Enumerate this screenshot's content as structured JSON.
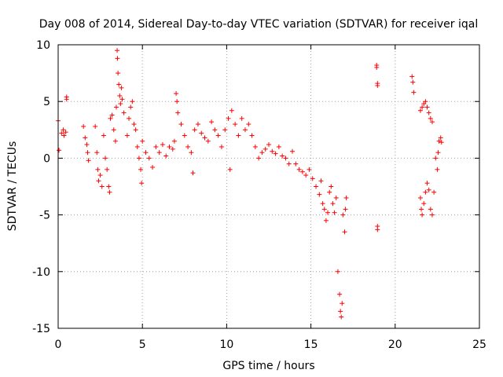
{
  "chart_data": {
    "type": "scatter",
    "title": "Day 008 of 2014, Sidereal Day-to-day VTEC variation (SDTVAR) for receiver iqal",
    "xlabel": "GPS time / hours",
    "ylabel": "SDTVAR / TECUs",
    "xlim": [
      0,
      25
    ],
    "ylim": [
      -15,
      10
    ],
    "xticks": [
      0,
      5,
      10,
      15,
      20,
      25
    ],
    "yticks": [
      -15,
      -10,
      -5,
      0,
      5,
      10
    ],
    "grid": true,
    "marker": "+",
    "marker_color": "#ff0000",
    "series": [
      {
        "name": "SDTVAR",
        "points": [
          [
            0.0,
            3.3
          ],
          [
            0.05,
            0.7
          ],
          [
            0.2,
            2.2
          ],
          [
            0.3,
            2.5
          ],
          [
            0.35,
            2.0
          ],
          [
            0.45,
            2.3
          ],
          [
            0.5,
            5.4
          ],
          [
            0.5,
            5.2
          ],
          [
            1.5,
            2.8
          ],
          [
            1.6,
            1.8
          ],
          [
            1.7,
            1.2
          ],
          [
            1.75,
            0.5
          ],
          [
            1.8,
            -0.2
          ],
          [
            2.2,
            2.8
          ],
          [
            2.3,
            0.5
          ],
          [
            2.35,
            -1.0
          ],
          [
            2.4,
            -2.0
          ],
          [
            2.5,
            -1.5
          ],
          [
            2.6,
            -2.5
          ],
          [
            2.7,
            2.0
          ],
          [
            2.8,
            0.0
          ],
          [
            2.9,
            -1.0
          ],
          [
            3.0,
            -2.5
          ],
          [
            3.05,
            -3.0
          ],
          [
            3.1,
            3.5
          ],
          [
            3.2,
            3.8
          ],
          [
            3.3,
            2.5
          ],
          [
            3.4,
            1.5
          ],
          [
            3.45,
            4.5
          ],
          [
            3.5,
            9.5
          ],
          [
            3.52,
            8.8
          ],
          [
            3.55,
            7.5
          ],
          [
            3.6,
            6.5
          ],
          [
            3.65,
            5.5
          ],
          [
            3.7,
            4.8
          ],
          [
            3.75,
            6.2
          ],
          [
            3.8,
            5.2
          ],
          [
            3.9,
            4.0
          ],
          [
            4.1,
            2.0
          ],
          [
            4.2,
            3.5
          ],
          [
            4.3,
            4.5
          ],
          [
            4.4,
            5.0
          ],
          [
            4.5,
            3.0
          ],
          [
            4.6,
            2.5
          ],
          [
            4.7,
            1.0
          ],
          [
            4.8,
            0.0
          ],
          [
            4.9,
            -1.0
          ],
          [
            4.95,
            -2.2
          ],
          [
            5.0,
            1.5
          ],
          [
            5.2,
            0.5
          ],
          [
            5.4,
            0.0
          ],
          [
            5.6,
            -0.8
          ],
          [
            5.8,
            1.0
          ],
          [
            6.0,
            0.5
          ],
          [
            6.2,
            1.2
          ],
          [
            6.4,
            0.2
          ],
          [
            6.6,
            1.0
          ],
          [
            6.8,
            0.8
          ],
          [
            6.9,
            1.5
          ],
          [
            7.0,
            5.7
          ],
          [
            7.05,
            5.0
          ],
          [
            7.1,
            4.0
          ],
          [
            7.3,
            3.0
          ],
          [
            7.5,
            2.0
          ],
          [
            7.7,
            1.0
          ],
          [
            7.9,
            0.5
          ],
          [
            8.0,
            -1.3
          ],
          [
            8.1,
            2.5
          ],
          [
            8.3,
            3.0
          ],
          [
            8.5,
            2.2
          ],
          [
            8.7,
            1.8
          ],
          [
            8.9,
            1.5
          ],
          [
            9.1,
            3.2
          ],
          [
            9.3,
            2.5
          ],
          [
            9.5,
            2.0
          ],
          [
            9.7,
            1.0
          ],
          [
            9.9,
            2.5
          ],
          [
            10.1,
            3.5
          ],
          [
            10.2,
            -1.0
          ],
          [
            10.3,
            4.2
          ],
          [
            10.5,
            3.0
          ],
          [
            10.7,
            2.0
          ],
          [
            10.9,
            3.5
          ],
          [
            11.1,
            2.5
          ],
          [
            11.3,
            3.0
          ],
          [
            11.5,
            2.0
          ],
          [
            11.7,
            1.0
          ],
          [
            11.9,
            0.0
          ],
          [
            12.1,
            0.5
          ],
          [
            12.3,
            0.8
          ],
          [
            12.5,
            1.2
          ],
          [
            12.7,
            0.6
          ],
          [
            12.9,
            0.4
          ],
          [
            13.1,
            1.0
          ],
          [
            13.3,
            0.2
          ],
          [
            13.5,
            0.0
          ],
          [
            13.7,
            -0.5
          ],
          [
            13.9,
            0.6
          ],
          [
            14.1,
            -0.5
          ],
          [
            14.3,
            -1.0
          ],
          [
            14.5,
            -1.2
          ],
          [
            14.7,
            -1.5
          ],
          [
            14.9,
            -1.0
          ],
          [
            15.1,
            -1.8
          ],
          [
            15.3,
            -2.5
          ],
          [
            15.5,
            -3.2
          ],
          [
            15.6,
            -2.0
          ],
          [
            15.7,
            -4.0
          ],
          [
            15.8,
            -4.5
          ],
          [
            15.9,
            -5.5
          ],
          [
            16.0,
            -4.8
          ],
          [
            16.1,
            -3.0
          ],
          [
            16.2,
            -2.5
          ],
          [
            16.3,
            -4.0
          ],
          [
            16.4,
            -4.8
          ],
          [
            16.5,
            -3.5
          ],
          [
            16.6,
            -10.0
          ],
          [
            16.7,
            -12.0
          ],
          [
            16.75,
            -13.5
          ],
          [
            16.8,
            -14.0
          ],
          [
            16.85,
            -12.8
          ],
          [
            16.9,
            -5.0
          ],
          [
            17.0,
            -6.5
          ],
          [
            17.05,
            -4.5
          ],
          [
            17.1,
            -3.5
          ],
          [
            18.9,
            8.2
          ],
          [
            18.9,
            8.0
          ],
          [
            18.95,
            6.6
          ],
          [
            18.95,
            6.4
          ],
          [
            18.95,
            -6.0
          ],
          [
            18.95,
            -6.3
          ],
          [
            21.0,
            7.2
          ],
          [
            21.05,
            6.7
          ],
          [
            21.1,
            5.8
          ],
          [
            21.5,
            4.2
          ],
          [
            21.6,
            4.5
          ],
          [
            21.7,
            4.8
          ],
          [
            21.8,
            5.0
          ],
          [
            21.9,
            4.5
          ],
          [
            22.0,
            4.0
          ],
          [
            22.1,
            3.5
          ],
          [
            22.2,
            3.2
          ],
          [
            21.5,
            -3.5
          ],
          [
            21.55,
            -4.5
          ],
          [
            21.6,
            -5.0
          ],
          [
            21.7,
            -4.0
          ],
          [
            21.8,
            -3.0
          ],
          [
            21.9,
            -2.2
          ],
          [
            22.0,
            -2.8
          ],
          [
            22.1,
            -4.5
          ],
          [
            22.2,
            -5.0
          ],
          [
            22.3,
            -3.0
          ],
          [
            22.4,
            0.0
          ],
          [
            22.5,
            -1.0
          ],
          [
            22.55,
            0.5
          ],
          [
            22.6,
            1.5
          ],
          [
            22.7,
            1.8
          ],
          [
            22.75,
            1.4
          ]
        ]
      }
    ]
  }
}
